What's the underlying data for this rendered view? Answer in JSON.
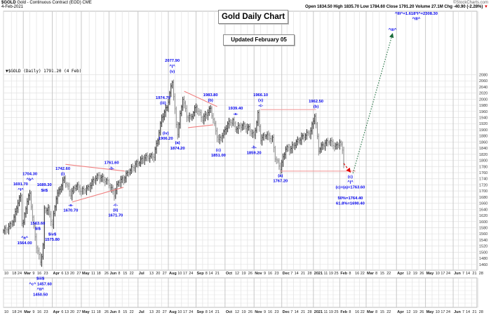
{
  "header": {
    "symbol": "$GOLD",
    "description": "Gold - Continuous Contract (EOD) CME",
    "date": "4-Feb-2021",
    "credit": "©StockCharts.com",
    "ohlc": "Open 1834.50  High 1835.70  Low 1784.60  Close 1791.20  Volume 27.1M  Chg -40.90 (-2.28%)",
    "change_arrow": "▼",
    "legend": "▼$GOLD (Daily) 1791.20 (4 Feb)"
  },
  "title_box": "Gold Daily Chart",
  "updated_box": "Updated February 05",
  "chart_data": {
    "type": "ohlc-bar",
    "title": "Gold Daily Chart",
    "ylim": [
      1460,
      2080
    ],
    "y_ticks": [
      2080,
      2060,
      2040,
      2020,
      2000,
      1980,
      1960,
      1940,
      1920,
      1900,
      1880,
      1860,
      1840,
      1820,
      1800,
      1780,
      1760,
      1740,
      1720,
      1700,
      1680,
      1660,
      1640,
      1620,
      1600,
      1580,
      1560,
      1540,
      1520,
      1500,
      1480,
      1460
    ],
    "grid": true,
    "x_start": "2020-02-10",
    "x_ticks": [
      [
        "10",
        "2020-02-10"
      ],
      [
        "18",
        "2020-02-18"
      ],
      [
        "24",
        "2020-02-24"
      ],
      [
        "Mar",
        "2020-03-02"
      ],
      [
        "9",
        "2020-03-09"
      ],
      [
        "16",
        "2020-03-16"
      ],
      [
        "23",
        "2020-03-23"
      ],
      [
        "Apr",
        "2020-04-01"
      ],
      [
        "6",
        "2020-04-06"
      ],
      [
        "13",
        "2020-04-13"
      ],
      [
        "20",
        "2020-04-20"
      ],
      [
        "27",
        "2020-04-27"
      ],
      [
        "May",
        "2020-05-01"
      ],
      [
        "11",
        "2020-05-11"
      ],
      [
        "18",
        "2020-05-18"
      ],
      [
        "26",
        "2020-05-26"
      ],
      [
        "Jun",
        "2020-06-01"
      ],
      [
        "8",
        "2020-06-08"
      ],
      [
        "15",
        "2020-06-15"
      ],
      [
        "22",
        "2020-06-22"
      ],
      [
        "Jul",
        "2020-07-01"
      ],
      [
        "13",
        "2020-07-13"
      ],
      [
        "20",
        "2020-07-20"
      ],
      [
        "27",
        "2020-07-27"
      ],
      [
        "Aug",
        "2020-08-03"
      ],
      [
        "10",
        "2020-08-10"
      ],
      [
        "17",
        "2020-08-17"
      ],
      [
        "24",
        "2020-08-24"
      ],
      [
        "Sep",
        "2020-09-01"
      ],
      [
        "8",
        "2020-09-08"
      ],
      [
        "14",
        "2020-09-14"
      ],
      [
        "21",
        "2020-09-21"
      ],
      [
        "Oct",
        "2020-10-01"
      ],
      [
        "12",
        "2020-10-12"
      ],
      [
        "19",
        "2020-10-19"
      ],
      [
        "26",
        "2020-10-26"
      ],
      [
        "Nov",
        "2020-11-02"
      ],
      [
        "9",
        "2020-11-09"
      ],
      [
        "16",
        "2020-11-16"
      ],
      [
        "23",
        "2020-11-23"
      ],
      [
        "Dec",
        "2020-12-01"
      ],
      [
        "7",
        "2020-12-07"
      ],
      [
        "14",
        "2020-12-14"
      ],
      [
        "21",
        "2020-12-21"
      ],
      [
        "28",
        "2020-12-28"
      ],
      [
        "2021",
        "2021-01-04"
      ],
      [
        "11",
        "2021-01-11"
      ],
      [
        "19",
        "2021-01-19"
      ],
      [
        "25",
        "2021-01-25"
      ],
      [
        "Feb",
        "2021-02-01"
      ],
      [
        "8",
        "2021-02-08"
      ],
      [
        "16",
        "2021-02-16"
      ],
      [
        "22",
        "2021-02-22"
      ],
      [
        "Mar",
        "2021-03-01"
      ],
      [
        "8",
        "2021-03-08"
      ],
      [
        "15",
        "2021-03-15"
      ],
      [
        "22",
        "2021-03-22"
      ],
      [
        "Apr",
        "2021-04-01"
      ],
      [
        "12",
        "2021-04-12"
      ],
      [
        "19",
        "2021-04-19"
      ],
      [
        "26",
        "2021-04-26"
      ],
      [
        "May",
        "2021-05-03"
      ],
      [
        "10",
        "2021-05-10"
      ],
      [
        "17",
        "2021-05-17"
      ],
      [
        "24",
        "2021-05-24"
      ],
      [
        "Jun",
        "2021-06-01"
      ],
      [
        "7",
        "2021-06-07"
      ],
      [
        "14",
        "2021-06-14"
      ],
      [
        "21",
        "2021-06-21"
      ],
      [
        "28",
        "2021-06-28"
      ]
    ],
    "price_path": [
      [
        "2020-02-10",
        1570
      ],
      [
        "2020-02-14",
        1582
      ],
      [
        "2020-02-20",
        1610
      ],
      [
        "2020-02-24",
        1650
      ],
      [
        "2020-02-27",
        1685
      ],
      [
        "2020-02-28",
        1600
      ],
      [
        "2020-03-02",
        1595
      ],
      [
        "2020-03-05",
        1670
      ],
      [
        "2020-03-09",
        1690
      ],
      [
        "2020-03-12",
        1580
      ],
      [
        "2020-03-16",
        1520
      ],
      [
        "2020-03-19",
        1470
      ],
      [
        "2020-03-20",
        1490
      ],
      [
        "2020-03-23",
        1520
      ],
      [
        "2020-03-24",
        1640
      ],
      [
        "2020-03-27",
        1640
      ],
      [
        "2020-04-01",
        1590
      ],
      [
        "2020-04-06",
        1680
      ],
      [
        "2020-04-14",
        1740
      ],
      [
        "2020-04-21",
        1690
      ],
      [
        "2020-04-27",
        1720
      ],
      [
        "2020-05-01",
        1700
      ],
      [
        "2020-05-08",
        1710
      ],
      [
        "2020-05-15",
        1740
      ],
      [
        "2020-05-20",
        1750
      ],
      [
        "2020-05-29",
        1730
      ],
      [
        "2020-06-05",
        1690
      ],
      [
        "2020-06-10",
        1730
      ],
      [
        "2020-06-16",
        1740
      ],
      [
        "2020-06-22",
        1765
      ],
      [
        "2020-06-30",
        1790
      ],
      [
        "2020-07-08",
        1810
      ],
      [
        "2020-07-17",
        1815
      ],
      [
        "2020-07-22",
        1870
      ],
      [
        "2020-07-27",
        1940
      ],
      [
        "2020-07-31",
        1975
      ],
      [
        "2020-08-06",
        2060
      ],
      [
        "2020-08-11",
        1915
      ],
      [
        "2020-08-12",
        1890
      ],
      [
        "2020-08-18",
        2005
      ],
      [
        "2020-08-21",
        1945
      ],
      [
        "2020-08-26",
        1940
      ],
      [
        "2020-09-01",
        1975
      ],
      [
        "2020-09-08",
        1935
      ],
      [
        "2020-09-16",
        1970
      ],
      [
        "2020-09-21",
        1915
      ],
      [
        "2020-09-24",
        1865
      ],
      [
        "2020-09-30",
        1890
      ],
      [
        "2020-10-05",
        1920
      ],
      [
        "2020-10-09",
        1930
      ],
      [
        "2020-10-13",
        1905
      ],
      [
        "2020-10-20",
        1915
      ],
      [
        "2020-10-27",
        1905
      ],
      [
        "2020-11-02",
        1880
      ],
      [
        "2020-11-05",
        1950
      ],
      [
        "2020-11-09",
        1870
      ],
      [
        "2020-11-13",
        1885
      ],
      [
        "2020-11-20",
        1870
      ],
      [
        "2020-11-24",
        1810
      ],
      [
        "2020-11-30",
        1775
      ],
      [
        "2020-12-04",
        1840
      ],
      [
        "2020-12-10",
        1840
      ],
      [
        "2020-12-16",
        1860
      ],
      [
        "2020-12-22",
        1875
      ],
      [
        "2020-12-31",
        1895
      ],
      [
        "2021-01-05",
        1950
      ],
      [
        "2021-01-06",
        1915
      ],
      [
        "2021-01-08",
        1835
      ],
      [
        "2021-01-13",
        1850
      ],
      [
        "2021-01-20",
        1865
      ],
      [
        "2021-01-27",
        1845
      ],
      [
        "2021-02-01",
        1860
      ],
      [
        "2021-02-03",
        1835
      ],
      [
        "2021-02-04",
        1791
      ]
    ],
    "trendlines": [
      {
        "color": "#f08080",
        "style": "solid",
        "from": [
          "2020-04-15",
          1787
        ],
        "to": [
          "2020-06-17",
          1765
        ]
      },
      {
        "color": "#f08080",
        "style": "solid",
        "from": [
          "2020-04-22",
          1664
        ],
        "to": [
          "2020-06-16",
          1712
        ]
      },
      {
        "color": "#f08080",
        "style": "solid",
        "from": [
          "2020-08-19",
          2026
        ],
        "to": [
          "2020-09-23",
          1976
        ]
      },
      {
        "color": "#f08080",
        "style": "solid",
        "from": [
          "2020-08-24",
          1907
        ],
        "to": [
          "2020-09-18",
          1916
        ]
      },
      {
        "color": "#f4a0a0",
        "style": "solid",
        "from": [
          "2020-11-09",
          1966
        ],
        "to": [
          "2021-01-06",
          1966
        ]
      },
      {
        "color": "#f4a0a0",
        "style": "solid",
        "from": [
          "2020-11-30",
          1765
        ],
        "to": [
          "2021-02-17",
          1765
        ]
      },
      {
        "color": "#e00000",
        "style": "dashed-arrow",
        "from": [
          "2021-02-04",
          1790
        ],
        "to": [
          "2021-02-11",
          1762
        ]
      },
      {
        "color": "#1a6b3a",
        "style": "dotted-arrow",
        "from": [
          "2021-02-15",
          1758
        ],
        "to": [
          "2021-03-29",
          2214
        ]
      }
    ],
    "annotations": [
      {
        "date": "2020-02-27",
        "price": 1691.7,
        "pos": "above",
        "lines": [
          "1691.70",
          "^I^"
        ]
      },
      {
        "date": "2020-03-03",
        "price": 1564.0,
        "pos": "below",
        "lines": [
          "^a^",
          "1564.00"
        ]
      },
      {
        "date": "2020-03-09",
        "price": 1704.3,
        "pos": "above",
        "lines": [
          "1704.30",
          "^b^"
        ]
      },
      {
        "date": "2020-03-17",
        "price": 1563.6,
        "pos": "above",
        "lines": [
          "1563.60",
          "$i$"
        ]
      },
      {
        "date": "2020-03-24",
        "price": 1689.3,
        "pos": "above",
        "lines": [
          "1689.30",
          "$ii$"
        ]
      },
      {
        "date": "2020-03-19",
        "price": 1451.0,
        "pos": "below",
        "lines": [
          "$iii$",
          "^c^ 1457.60",
          "^II^",
          "1450.50"
        ]
      },
      {
        "date": "2020-04-01",
        "price": 1575.8,
        "pos": "below",
        "lines": [
          "$iv$",
          "1575.80"
        ]
      },
      {
        "date": "2020-04-13",
        "price": 1742.6,
        "pos": "above",
        "lines": [
          "1742.60",
          "(i)"
        ]
      },
      {
        "date": "2020-04-21",
        "price": 1670.7,
        "pos": "below",
        "lines": [
          "-a-",
          "1670.70"
        ]
      },
      {
        "date": "2020-06-03",
        "price": 1761.6,
        "pos": "above",
        "lines": [
          "1761.60",
          "-b-"
        ]
      },
      {
        "date": "2020-06-08",
        "price": 1671.7,
        "pos": "below",
        "lines": [
          "-c-",
          "(ii)",
          "1671.70"
        ]
      },
      {
        "date": "2020-07-28",
        "price": 1974.7,
        "pos": "above",
        "lines": [
          "1974.70",
          "(iii)"
        ]
      },
      {
        "date": "2020-07-30",
        "price": 1906.2,
        "pos": "below",
        "lines": [
          "(iv)",
          "1906.20"
        ]
      },
      {
        "date": "2020-08-06",
        "price": 2077.9,
        "pos": "above",
        "lines": [
          "2077.90",
          "^|^",
          "(v)"
        ]
      },
      {
        "date": "2020-08-12",
        "price": 1874.2,
        "pos": "below",
        "lines": [
          "(a)",
          "1874.20"
        ]
      },
      {
        "date": "2020-09-16",
        "price": 1983.8,
        "pos": "above",
        "lines": [
          "1983.80",
          "(b)"
        ]
      },
      {
        "date": "2020-09-24",
        "price": 1851.0,
        "pos": "below",
        "lines": [
          "(c)",
          "1851.00"
        ]
      },
      {
        "date": "2020-10-13",
        "price": 1939.4,
        "pos": "above",
        "lines": [
          "1939.40",
          "-a-"
        ]
      },
      {
        "date": "2020-11-02",
        "price": 1859.2,
        "pos": "below",
        "lines": [
          "-b-",
          "1859.20"
        ]
      },
      {
        "date": "2020-11-09",
        "price": 1966.1,
        "pos": "above",
        "lines": [
          "1966.10",
          "(x)",
          "-c-"
        ]
      },
      {
        "date": "2020-11-30",
        "price": 1767.2,
        "pos": "below",
        "lines": [
          "(a)",
          "1767.20"
        ]
      },
      {
        "date": "2021-01-06",
        "price": 1962.5,
        "pos": "above",
        "lines": [
          "1962.50",
          "(b)"
        ]
      },
      {
        "date": "2021-02-11",
        "price": 1763.6,
        "pos": "below",
        "lines": [
          "(c)",
          "^|^",
          "(c)=(a)=1763.60",
          "",
          "50%=1764.40",
          "61.8%=1690.40"
        ]
      },
      {
        "date": "2021-03-29",
        "price": 2214,
        "pos": "above",
        "lines": [
          "^iii^"
        ]
      },
      {
        "date": "2021-04-22",
        "price": 2250,
        "pos": "above",
        "lines": [
          "^III^=1.618*I^=2308.30",
          "^III^"
        ]
      }
    ],
    "colors": {
      "annotation": "#0000ee",
      "bar_up": "#222222",
      "bar_down": "#888888",
      "grid": "#e2e2e2"
    }
  }
}
